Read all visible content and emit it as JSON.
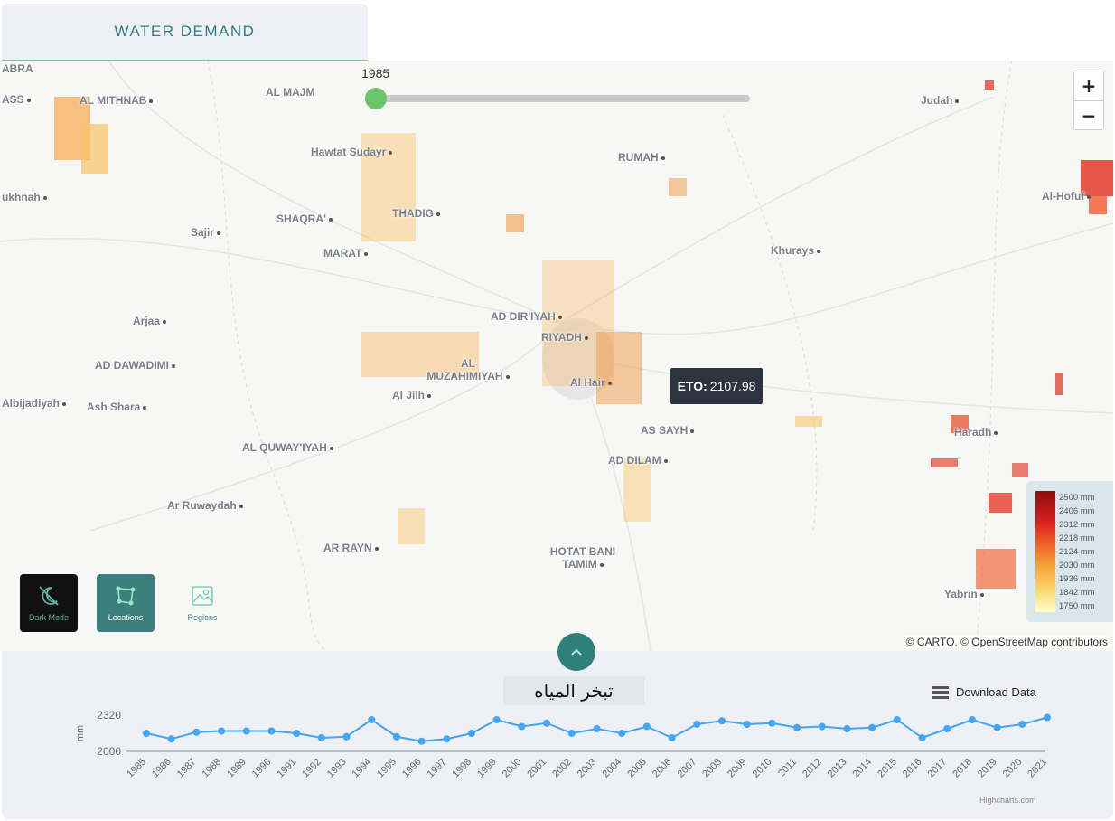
{
  "tab": {
    "label": "WATER DEMAND"
  },
  "slider": {
    "year": "1985"
  },
  "zoom": {
    "in": "+",
    "out": "−"
  },
  "tooltip": {
    "key": "ETO:",
    "value": "2107.98"
  },
  "cities": [
    {
      "name": "ABRA"
    },
    {
      "name": "ASS"
    },
    {
      "name": "AL MITHNAB"
    },
    {
      "name": "AL MAJM"
    },
    {
      "name": "Judah"
    },
    {
      "name": "Hawtat Sudayr"
    },
    {
      "name": "RUMAH"
    },
    {
      "name": "ukhnah"
    },
    {
      "name": "SHAQRA'"
    },
    {
      "name": "THADIG"
    },
    {
      "name": "Sajir"
    },
    {
      "name": "Al-Hofuf"
    },
    {
      "name": "MARAT"
    },
    {
      "name": "Khurays"
    },
    {
      "name": "Arjaa"
    },
    {
      "name": "AD DIR'IYAH"
    },
    {
      "name": "RIYADH"
    },
    {
      "name": "AD DAWADIMI"
    },
    {
      "name": "AL MUZAHIMIYAH"
    },
    {
      "name": "Al Hair"
    },
    {
      "name": "Albijadiyah"
    },
    {
      "name": "Ash Shara"
    },
    {
      "name": "Al Jilh"
    },
    {
      "name": "Haradh"
    },
    {
      "name": "AS SAYH"
    },
    {
      "name": "AL QUWAY'IYAH"
    },
    {
      "name": "AD DILAM"
    },
    {
      "name": "Ar Ruwaydah"
    },
    {
      "name": "AR RAYN"
    },
    {
      "name": "HOTAT BANI TAMIM"
    },
    {
      "name": "Yabrin"
    }
  ],
  "legend": {
    "labels": [
      "2500 mm",
      "2406 mm",
      "2312 mm",
      "2218 mm",
      "2124 mm",
      "2030 mm",
      "1936 mm",
      "1842 mm",
      "1750 mm"
    ]
  },
  "modes": [
    {
      "label": "Dark Mode",
      "icon": "dark-mode-off-icon"
    },
    {
      "label": "Locations",
      "icon": "locations-icon"
    },
    {
      "label": "Regions",
      "icon": "regions-icon"
    }
  ],
  "attribution": "© CARTO, © OpenStreetMap contributors",
  "panel": {
    "title": "تبخر المياه",
    "download": "Download Data",
    "credits": "Highcharts.com",
    "toggle_icon": "chevron-up-icon"
  },
  "colors": {
    "accent": "#2f7f7a",
    "line": "#42a5f5",
    "thumb": "#6cc46d"
  },
  "chart_data": {
    "type": "line",
    "title": "تبخر المياه",
    "ylabel": "mm",
    "yticks": [
      "2320",
      "2000"
    ],
    "ylim": [
      2000,
      2320
    ],
    "categories": [
      "1985",
      "1986",
      "1987",
      "1988",
      "1989",
      "1990",
      "1991",
      "1992",
      "1993",
      "1994",
      "1995",
      "1996",
      "1997",
      "1998",
      "1999",
      "2000",
      "2001",
      "2002",
      "2003",
      "2004",
      "2005",
      "2006",
      "2007",
      "2008",
      "2009",
      "2010",
      "2011",
      "2012",
      "2013",
      "2014",
      "2015",
      "2016",
      "2017",
      "2018",
      "2019",
      "2020",
      "2021"
    ],
    "series": [
      {
        "values": [
          2160,
          2110,
          2170,
          2180,
          2180,
          2180,
          2160,
          2120,
          2130,
          2280,
          2130,
          2090,
          2110,
          2160,
          2280,
          2220,
          2250,
          2160,
          2200,
          2160,
          2220,
          2120,
          2240,
          2270,
          2240,
          2250,
          2210,
          2220,
          2200,
          2210,
          2280,
          2120,
          2200,
          2280,
          2210,
          2240,
          2300
        ]
      }
    ]
  }
}
